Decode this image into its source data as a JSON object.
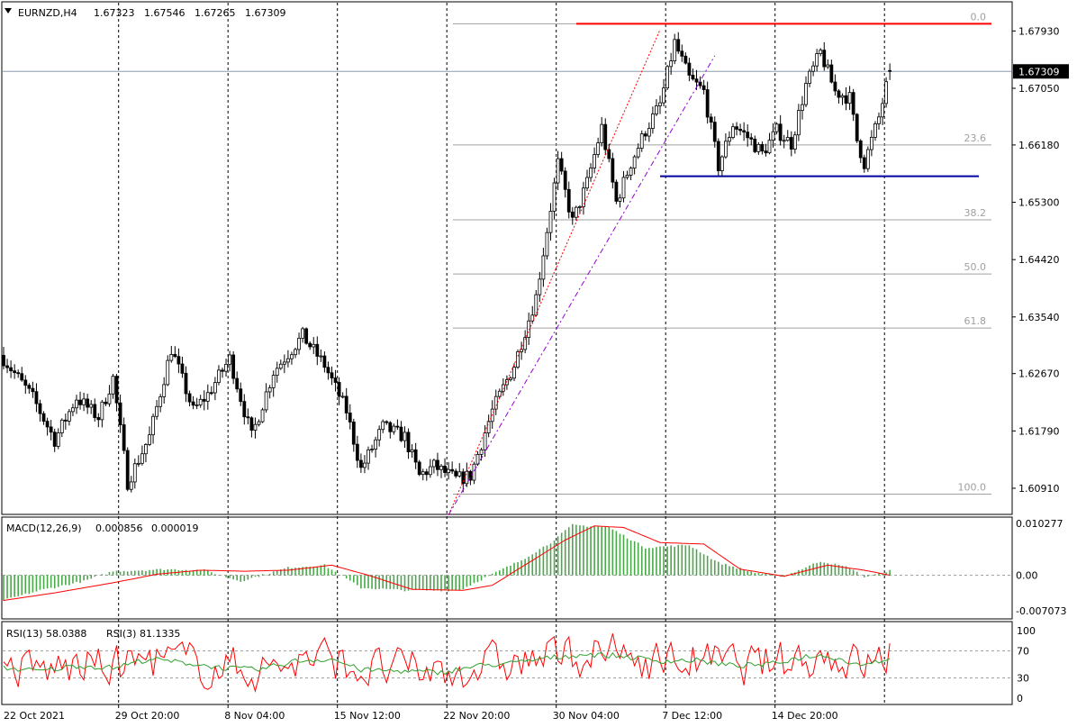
{
  "chart_data": [
    {
      "type": "candlestick",
      "title": "EURNZD,H4",
      "ohlc_header": [
        "1.67323",
        "1.67546",
        "1.67265",
        "1.67309"
      ],
      "current_price": "1.67309",
      "y_ticks": [
        "1.67930",
        "1.67050",
        "1.66180",
        "1.65300",
        "1.64420",
        "1.63540",
        "1.62670",
        "1.61790",
        "1.60910"
      ],
      "ylim": [
        1.6055,
        1.6835
      ],
      "x_ticks": [
        "22 Oct 2021",
        "29 Oct 20:00",
        "8 Nov 04:00",
        "15 Nov 12:00",
        "22 Nov 20:00",
        "30 Nov 04:00",
        "7 Dec 12:00",
        "14 Dec 20:00"
      ],
      "fibonacci_levels": [
        {
          "label": "0.0",
          "price": 1.6804
        },
        {
          "label": "23.6",
          "price": 1.6618
        },
        {
          "label": "38.2",
          "price": 1.6503
        },
        {
          "label": "50.0",
          "price": 1.642
        },
        {
          "label": "61.8",
          "price": 1.6337
        },
        {
          "label": "100.0",
          "price": 1.6082
        }
      ],
      "resistance_line": {
        "price": 1.6804
      },
      "support_line": {
        "price": 1.657
      },
      "waypoints": [
        {
          "bar": 0,
          "price": 1.629
        },
        {
          "bar": 8,
          "price": 1.623
        },
        {
          "bar": 14,
          "price": 1.6165
        },
        {
          "bar": 20,
          "price": 1.623
        },
        {
          "bar": 26,
          "price": 1.62
        },
        {
          "bar": 30,
          "price": 1.626
        },
        {
          "bar": 34,
          "price": 1.61
        },
        {
          "bar": 40,
          "price": 1.617
        },
        {
          "bar": 46,
          "price": 1.6305
        },
        {
          "bar": 52,
          "price": 1.621
        },
        {
          "bar": 56,
          "price": 1.6235
        },
        {
          "bar": 62,
          "price": 1.629
        },
        {
          "bar": 68,
          "price": 1.617
        },
        {
          "bar": 74,
          "price": 1.627
        },
        {
          "bar": 82,
          "price": 1.6325
        },
        {
          "bar": 88,
          "price": 1.628
        },
        {
          "bar": 94,
          "price": 1.621
        },
        {
          "bar": 98,
          "price": 1.612
        },
        {
          "bar": 104,
          "price": 1.6185
        },
        {
          "bar": 110,
          "price": 1.617
        },
        {
          "bar": 114,
          "price": 1.611
        },
        {
          "bar": 118,
          "price": 1.6125
        },
        {
          "bar": 124,
          "price": 1.6105
        },
        {
          "bar": 128,
          "price": 1.611
        },
        {
          "bar": 134,
          "price": 1.621
        },
        {
          "bar": 140,
          "price": 1.628
        },
        {
          "bar": 146,
          "price": 1.6385
        },
        {
          "bar": 152,
          "price": 1.659
        },
        {
          "bar": 156,
          "price": 1.65
        },
        {
          "bar": 160,
          "price": 1.656
        },
        {
          "bar": 164,
          "price": 1.6645
        },
        {
          "bar": 168,
          "price": 1.653
        },
        {
          "bar": 172,
          "price": 1.659
        },
        {
          "bar": 176,
          "price": 1.664
        },
        {
          "bar": 180,
          "price": 1.668
        },
        {
          "bar": 184,
          "price": 1.6775
        },
        {
          "bar": 188,
          "price": 1.672
        },
        {
          "bar": 192,
          "price": 1.67
        },
        {
          "bar": 196,
          "price": 1.6585
        },
        {
          "bar": 200,
          "price": 1.665
        },
        {
          "bar": 204,
          "price": 1.663
        },
        {
          "bar": 208,
          "price": 1.6605
        },
        {
          "bar": 212,
          "price": 1.664
        },
        {
          "bar": 216,
          "price": 1.662
        },
        {
          "bar": 220,
          "price": 1.671
        },
        {
          "bar": 224,
          "price": 1.676
        },
        {
          "bar": 228,
          "price": 1.67
        },
        {
          "bar": 232,
          "price": 1.669
        },
        {
          "bar": 234,
          "price": 1.6625
        },
        {
          "bar": 236,
          "price": 1.659
        },
        {
          "bar": 240,
          "price": 1.666
        },
        {
          "bar": 243,
          "price": 1.6731
        }
      ],
      "bar_count": 244,
      "colors": {
        "axis": "#000000",
        "grid": "#000000",
        "fib": "#a0a0a0",
        "bid_line": "#8a9bb0",
        "resistance": "#ff0000",
        "support": "#0000a0",
        "channel_red": "#ff0000",
        "channel_purple": "#9400d3",
        "candle": "#000000",
        "price_label_bg": "#000000",
        "price_label_text": "#ffffff"
      }
    },
    {
      "type": "histogram+line",
      "title": "MACD(12,26,9)",
      "values_header": [
        "0.000856",
        "0.000019"
      ],
      "y_ticks": [
        "0.010277",
        "0.00",
        "-0.007073"
      ],
      "ylim": [
        -0.0085,
        0.0112
      ],
      "zero_label": "0.00",
      "histogram_waypoints": [
        {
          "bar": 0,
          "v": -0.005
        },
        {
          "bar": 10,
          "v": -0.003
        },
        {
          "bar": 22,
          "v": -0.0012
        },
        {
          "bar": 30,
          "v": 0.0008
        },
        {
          "bar": 45,
          "v": 0.0012
        },
        {
          "bar": 55,
          "v": 0.001
        },
        {
          "bar": 65,
          "v": -0.0012
        },
        {
          "bar": 78,
          "v": 0.0015
        },
        {
          "bar": 88,
          "v": 0.002
        },
        {
          "bar": 98,
          "v": -0.0025
        },
        {
          "bar": 110,
          "v": -0.003
        },
        {
          "bar": 125,
          "v": -0.003
        },
        {
          "bar": 132,
          "v": -0.0005
        },
        {
          "bar": 142,
          "v": 0.003
        },
        {
          "bar": 150,
          "v": 0.0065
        },
        {
          "bar": 156,
          "v": 0.01
        },
        {
          "bar": 166,
          "v": 0.0095
        },
        {
          "bar": 176,
          "v": 0.0055
        },
        {
          "bar": 188,
          "v": 0.006
        },
        {
          "bar": 196,
          "v": 0.0025
        },
        {
          "bar": 206,
          "v": 0.0005
        },
        {
          "bar": 214,
          "v": -0.0002
        },
        {
          "bar": 224,
          "v": 0.0028
        },
        {
          "bar": 232,
          "v": 0.0015
        },
        {
          "bar": 236,
          "v": -0.0004
        },
        {
          "bar": 243,
          "v": 0.0009
        }
      ],
      "signal_waypoints": [
        {
          "bar": 0,
          "v": -0.005
        },
        {
          "bar": 14,
          "v": -0.0035
        },
        {
          "bar": 30,
          "v": -0.0015
        },
        {
          "bar": 42,
          "v": 0.0002
        },
        {
          "bar": 54,
          "v": 0.001
        },
        {
          "bar": 66,
          "v": 0.0008
        },
        {
          "bar": 78,
          "v": 0.001
        },
        {
          "bar": 90,
          "v": 0.002
        },
        {
          "bar": 100,
          "v": 0.0
        },
        {
          "bar": 112,
          "v": -0.0028
        },
        {
          "bar": 126,
          "v": -0.003
        },
        {
          "bar": 134,
          "v": -0.002
        },
        {
          "bar": 144,
          "v": 0.0025
        },
        {
          "bar": 154,
          "v": 0.007
        },
        {
          "bar": 162,
          "v": 0.0098
        },
        {
          "bar": 170,
          "v": 0.0095
        },
        {
          "bar": 180,
          "v": 0.0065
        },
        {
          "bar": 192,
          "v": 0.0062
        },
        {
          "bar": 202,
          "v": 0.0012
        },
        {
          "bar": 214,
          "v": -0.0002
        },
        {
          "bar": 226,
          "v": 0.002
        },
        {
          "bar": 236,
          "v": 0.001
        },
        {
          "bar": 243,
          "v": 0.0
        }
      ],
      "colors": {
        "histogram": "#4aa84a",
        "signal": "#ff0000",
        "zero": "#a0a0a0"
      }
    },
    {
      "type": "line",
      "title": "RSI(13) 58.0388",
      "title2": "RSI(3) 81.1335",
      "y_ticks": [
        "100",
        "70",
        "30",
        "0"
      ],
      "ylim": [
        0,
        100
      ],
      "levels": [
        70,
        30
      ],
      "rsi13_waypoints": [
        {
          "bar": 0,
          "v": 45
        },
        {
          "bar": 10,
          "v": 40
        },
        {
          "bar": 20,
          "v": 48
        },
        {
          "bar": 30,
          "v": 45
        },
        {
          "bar": 40,
          "v": 58
        },
        {
          "bar": 50,
          "v": 52
        },
        {
          "bar": 60,
          "v": 45
        },
        {
          "bar": 70,
          "v": 42
        },
        {
          "bar": 80,
          "v": 55
        },
        {
          "bar": 90,
          "v": 58
        },
        {
          "bar": 98,
          "v": 42
        },
        {
          "bar": 110,
          "v": 40
        },
        {
          "bar": 120,
          "v": 38
        },
        {
          "bar": 130,
          "v": 48
        },
        {
          "bar": 140,
          "v": 52
        },
        {
          "bar": 150,
          "v": 60
        },
        {
          "bar": 160,
          "v": 65
        },
        {
          "bar": 170,
          "v": 62
        },
        {
          "bar": 180,
          "v": 55
        },
        {
          "bar": 190,
          "v": 56
        },
        {
          "bar": 200,
          "v": 48
        },
        {
          "bar": 210,
          "v": 50
        },
        {
          "bar": 220,
          "v": 62
        },
        {
          "bar": 226,
          "v": 63
        },
        {
          "bar": 234,
          "v": 50
        },
        {
          "bar": 243,
          "v": 58
        }
      ],
      "colors": {
        "rsi13": "#2ea02e",
        "rsi3": "#ff0000",
        "levels": "#a0a0a0"
      }
    }
  ]
}
